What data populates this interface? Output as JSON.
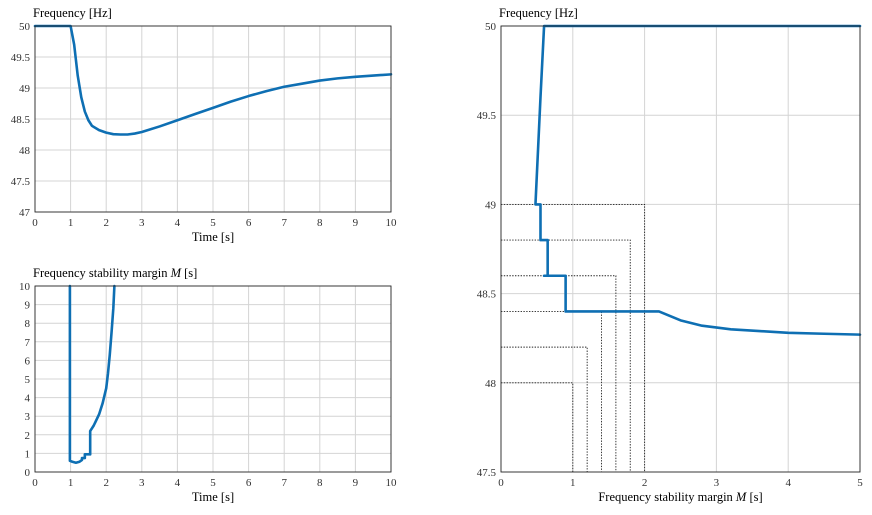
{
  "chart_data": [
    {
      "type": "line",
      "title": "Frequency [Hz]",
      "xlabel": "Time [s]",
      "xlim": [
        0,
        10
      ],
      "ylim": [
        47,
        50
      ],
      "xticks": [
        "0",
        "1",
        "2",
        "3",
        "4",
        "5",
        "6",
        "7",
        "8",
        "9",
        "10"
      ],
      "yticks": [
        "47",
        "47.5",
        "48",
        "48.5",
        "49",
        "49.5",
        "50"
      ],
      "grid": true,
      "series_color": "#0e6fb3",
      "x": [
        0,
        1.0,
        1.1,
        1.2,
        1.3,
        1.4,
        1.5,
        1.6,
        1.8,
        2.0,
        2.2,
        2.4,
        2.6,
        2.8,
        3.0,
        3.5,
        4.0,
        4.5,
        5.0,
        5.5,
        6.0,
        6.5,
        7.0,
        7.5,
        8.0,
        8.5,
        9.0,
        9.5,
        10.0
      ],
      "y": [
        50,
        50,
        49.7,
        49.2,
        48.85,
        48.62,
        48.48,
        48.39,
        48.32,
        48.28,
        48.255,
        48.25,
        48.25,
        48.265,
        48.29,
        48.38,
        48.48,
        48.58,
        48.68,
        48.78,
        48.87,
        48.95,
        49.02,
        49.07,
        49.12,
        49.155,
        49.18,
        49.2,
        49.22
      ]
    },
    {
      "type": "line",
      "title_prefix": "Frequency stability margin ",
      "title_var": "M",
      "title_suffix": " [s]",
      "xlabel": "Time [s]",
      "xlim": [
        0,
        10
      ],
      "ylim": [
        0,
        10
      ],
      "xticks": [
        "0",
        "1",
        "2",
        "3",
        "4",
        "5",
        "6",
        "7",
        "8",
        "9",
        "10"
      ],
      "yticks": [
        "0",
        "1",
        "2",
        "3",
        "4",
        "5",
        "6",
        "7",
        "8",
        "9",
        "10"
      ],
      "grid": true,
      "series_color": "#0e6fb3",
      "x": [
        0.98,
        0.98,
        1.05,
        1.15,
        1.25,
        1.32,
        1.32,
        1.4,
        1.4,
        1.55,
        1.55,
        1.6,
        1.65,
        1.7,
        1.8,
        1.9,
        2.0,
        2.05,
        2.1,
        2.15,
        2.2,
        2.23
      ],
      "y": [
        10,
        0.6,
        0.55,
        0.5,
        0.55,
        0.65,
        0.75,
        0.75,
        0.95,
        0.95,
        2.2,
        2.35,
        2.5,
        2.7,
        3.1,
        3.7,
        4.5,
        5.3,
        6.3,
        7.5,
        8.8,
        10
      ]
    },
    {
      "type": "line",
      "title": "Frequency [Hz]",
      "xlabel_prefix": "Frequency stability margin ",
      "xlabel_var": "M",
      "xlabel_suffix": " [s]",
      "xlim": [
        0,
        5
      ],
      "ylim": [
        47.5,
        50
      ],
      "xticks": [
        "0",
        "1",
        "2",
        "3",
        "4",
        "5"
      ],
      "yticks": [
        "47.5",
        "48",
        "48.5",
        "49",
        "49.5",
        "50"
      ],
      "grid": true,
      "series_color": "#0e6fb3",
      "x": [
        5.0,
        0.6,
        0.55,
        0.48,
        0.48,
        0.55,
        0.55,
        0.65,
        0.65,
        0.6,
        0.6,
        0.9,
        0.9,
        2.2,
        2.5,
        2.8,
        3.2,
        3.6,
        4.0,
        4.5,
        5.0
      ],
      "y": [
        50,
        50,
        49.6,
        49.0,
        49.0,
        49.0,
        48.8,
        48.8,
        48.6,
        48.6,
        48.6,
        48.6,
        48.4,
        48.4,
        48.35,
        48.32,
        48.3,
        48.29,
        48.28,
        48.275,
        48.27
      ],
      "guides": [
        {
          "freq": 49.0,
          "margin": 2.0
        },
        {
          "freq": 48.8,
          "margin": 1.8
        },
        {
          "freq": 48.6,
          "margin": 1.6
        },
        {
          "freq": 48.4,
          "margin": 1.4
        },
        {
          "freq": 48.2,
          "margin": 1.2
        },
        {
          "freq": 48.0,
          "margin": 1.0
        }
      ]
    }
  ]
}
